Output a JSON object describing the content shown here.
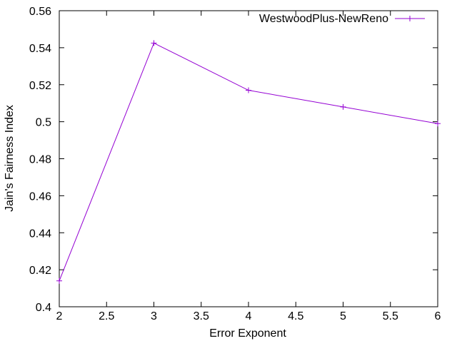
{
  "chart_data": {
    "type": "line",
    "xlabel": "Error Exponent",
    "ylabel": "Jain's Fairness Index",
    "xlim": [
      2,
      6
    ],
    "ylim": [
      0.4,
      0.56
    ],
    "xticks": [
      2,
      2.5,
      3,
      3.5,
      4,
      4.5,
      5,
      5.5,
      6
    ],
    "xtick_labels": [
      "2",
      "2.5",
      "3",
      "3.5",
      "4",
      "4.5",
      "5",
      "5.5",
      "6"
    ],
    "yticks": [
      0.4,
      0.42,
      0.44,
      0.46,
      0.48,
      0.5,
      0.52,
      0.54,
      0.56
    ],
    "ytick_labels": [
      "0.4",
      "0.42",
      "0.44",
      "0.46",
      "0.48",
      "0.5",
      "0.52",
      "0.54",
      "0.56"
    ],
    "grid": false,
    "legend_position": "top-right",
    "series": [
      {
        "name": "WestwoodPlus-NewReno",
        "color": "#9400d3",
        "marker": "plus",
        "x": [
          2,
          3,
          4,
          5,
          6
        ],
        "y": [
          0.414,
          0.5425,
          0.517,
          0.508,
          0.499
        ]
      }
    ]
  }
}
